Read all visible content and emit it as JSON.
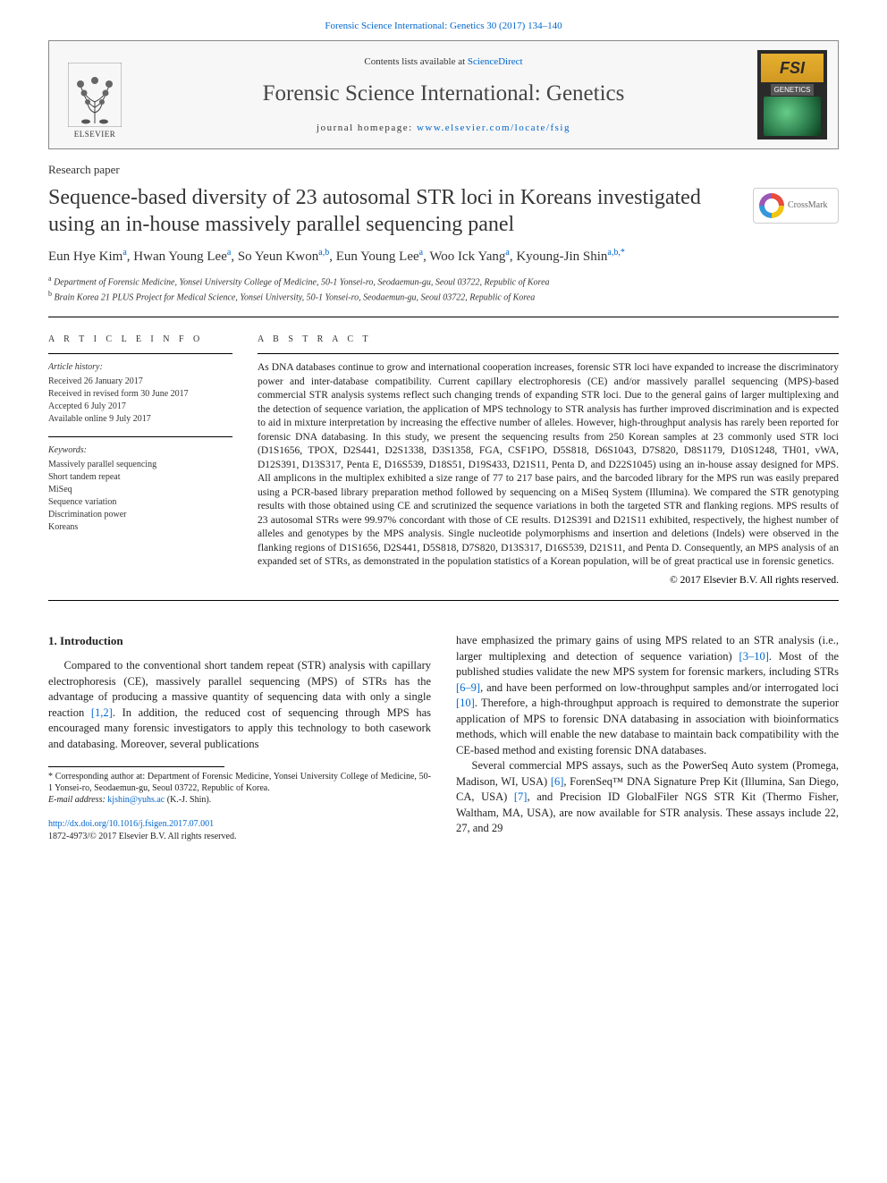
{
  "top_link": {
    "prefix": "Forensic Science International: Genetics 30 (2017) 134–140"
  },
  "header": {
    "contents_prefix": "Contents lists available at ",
    "contents_link": "ScienceDirect",
    "journal": "Forensic Science International: Genetics",
    "homepage_prefix": "journal homepage: ",
    "homepage_url": "www.elsevier.com/locate/fsig",
    "elsevier_label": "ELSEVIER",
    "cover_logo": "FSI",
    "cover_subtitle": "GENETICS"
  },
  "paper_type": "Research paper",
  "title": "Sequence-based diversity of 23 autosomal STR loci in Koreans investigated using an in-house massively parallel sequencing panel",
  "crossmark_label": "CrossMark",
  "authors_html": "Eun Hye Kim<sup>a</sup>, Hwan Young Lee<sup>a</sup>, So Yeun Kwon<sup>a,b</sup>, Eun Young Lee<sup>a</sup>, Woo Ick Yang<sup>a</sup>, Kyoung-Jin Shin<sup>a,b,*</sup>",
  "affiliations": [
    {
      "sup": "a",
      "text": "Department of Forensic Medicine, Yonsei University College of Medicine, 50-1 Yonsei-ro, Seodaemun-gu, Seoul 03722, Republic of Korea"
    },
    {
      "sup": "b",
      "text": "Brain Korea 21 PLUS Project for Medical Science, Yonsei University, 50-1 Yonsei-ro, Seodaemun-gu, Seoul 03722, Republic of Korea"
    }
  ],
  "article_info": {
    "heading": "A R T I C L E  I N F O",
    "history_label": "Article history:",
    "history": [
      "Received 26 January 2017",
      "Received in revised form 30 June 2017",
      "Accepted 6 July 2017",
      "Available online 9 July 2017"
    ],
    "keywords_label": "Keywords:",
    "keywords": [
      "Massively parallel sequencing",
      "Short tandem repeat",
      "MiSeq",
      "Sequence variation",
      "Discrimination power",
      "Koreans"
    ]
  },
  "abstract": {
    "heading": "A B S T R A C T",
    "text": "As DNA databases continue to grow and international cooperation increases, forensic STR loci have expanded to increase the discriminatory power and inter-database compatibility. Current capillary electrophoresis (CE) and/or massively parallel sequencing (MPS)-based commercial STR analysis systems reflect such changing trends of expanding STR loci. Due to the general gains of larger multiplexing and the detection of sequence variation, the application of MPS technology to STR analysis has further improved discrimination and is expected to aid in mixture interpretation by increasing the effective number of alleles. However, high-throughput analysis has rarely been reported for forensic DNA databasing. In this study, we present the sequencing results from 250 Korean samples at 23 commonly used STR loci (D1S1656, TPOX, D2S441, D2S1338, D3S1358, FGA, CSF1PO, D5S818, D6S1043, D7S820, D8S1179, D10S1248, TH01, vWA, D12S391, D13S317, Penta E, D16S539, D18S51, D19S433, D21S11, Penta D, and D22S1045) using an in-house assay designed for MPS. All amplicons in the multiplex exhibited a size range of 77 to 217 base pairs, and the barcoded library for the MPS run was easily prepared using a PCR-based library preparation method followed by sequencing on a MiSeq System (Illumina). We compared the STR genotyping results with those obtained using CE and scrutinized the sequence variations in both the targeted STR and flanking regions. MPS results of 23 autosomal STRs were 99.97% concordant with those of CE results. D12S391 and D21S11 exhibited, respectively, the highest number of alleles and genotypes by the MPS analysis. Single nucleotide polymorphisms and insertion and deletions (Indels) were observed in the flanking regions of D1S1656, D2S441, D5S818, D7S820, D13S317, D16S539, D21S11, and Penta D. Consequently, an MPS analysis of an expanded set of STRs, as demonstrated in the population statistics of a Korean population, will be of great practical use in forensic genetics.",
    "copyright": "© 2017 Elsevier B.V. All rights reserved."
  },
  "body": {
    "section1_heading": "1. Introduction",
    "col1_p1": "Compared to the conventional short tandem repeat (STR) analysis with capillary electrophoresis (CE), massively parallel sequencing (MPS) of STRs has the advantage of producing a massive quantity of sequencing data with only a single reaction [1,2]. In addition, the reduced cost of sequencing through MPS has encouraged many forensic investigators to apply this technology to both casework and databasing. Moreover, several publications",
    "col2_p1": "have emphasized the primary gains of using MPS related to an STR analysis (i.e., larger multiplexing and detection of sequence variation) [3–10]. Most of the published studies validate the new MPS system for forensic markers, including STRs [6–9], and have been performed on low-throughput samples and/or interrogated loci [10]. Therefore, a high-throughput approach is required to demonstrate the superior application of MPS to forensic DNA databasing in association with bioinformatics methods, which will enable the new database to maintain back compatibility with the CE-based method and existing forensic DNA databases.",
    "col2_p2": "Several commercial MPS assays, such as the PowerSeq Auto system (Promega, Madison, WI, USA) [6], ForenSeq™ DNA Signature Prep Kit (Illumina, San Diego, CA, USA) [7], and Precision ID GlobalFiler NGS STR Kit (Thermo Fisher, Waltham, MA, USA), are now available for STR analysis. These assays include 22, 27, and 29"
  },
  "footnote": {
    "corr": "* Corresponding author at: Department of Forensic Medicine, Yonsei University College of Medicine, 50-1 Yonsei-ro, Seodaemun-gu, Seoul 03722, Republic of Korea.",
    "email_label": "E-mail address: ",
    "email": "kjshin@yuhs.ac",
    "email_suffix": " (K.-J. Shin)."
  },
  "doi": {
    "url": "http://dx.doi.org/10.1016/j.fsigen.2017.07.001",
    "issn_line": "1872-4973/© 2017 Elsevier B.V. All rights reserved."
  },
  "colors": {
    "link": "#0066cc",
    "text": "#222222",
    "border": "#000000",
    "header_bg": "#f7f7f7"
  },
  "citations": {
    "c1": "[1,2]",
    "c2": "[3–10]",
    "c3": "[6–9]",
    "c4": "[10]",
    "c5": "[6]",
    "c6": "[7]"
  }
}
